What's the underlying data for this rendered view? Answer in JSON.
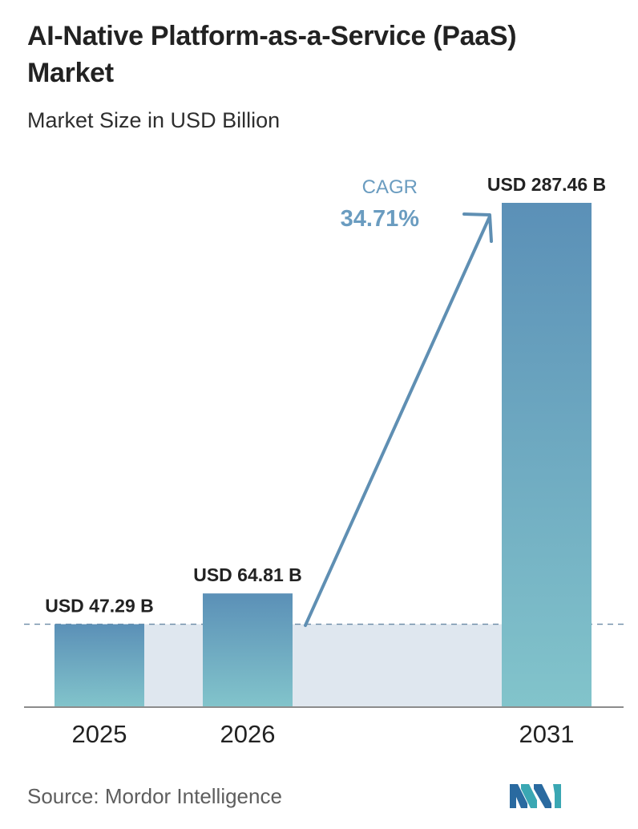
{
  "title": "AI-Native Platform-as-a-Service (PaaS) Market",
  "subtitle": "Market Size in USD Billion",
  "source": "Source: Mordor Intelligence",
  "colors": {
    "bar_top": "#5b90b7",
    "bar_bottom": "#82c4cb",
    "shade": "#dfe7ef",
    "arrow": "#5f8fb3",
    "cagr_text": "#6a9cc0",
    "axis": "#8c8c8c",
    "dash": "#6b8ba5"
  },
  "cagr": {
    "label": "CAGR",
    "value": "34.71%"
  },
  "chart_data": {
    "type": "bar",
    "categories": [
      "2025",
      "2026",
      "2031"
    ],
    "values": [
      47.29,
      64.81,
      287.46
    ],
    "value_labels": [
      "USD 47.29 B",
      "USD 64.81 B",
      "USD 287.46 B"
    ],
    "title": "AI-Native Platform-as-a-Service (PaaS) Market",
    "subtitle": "Market Size in USD Billion",
    "annotations": [
      {
        "text": "CAGR 34.71%",
        "from": "2026",
        "to": "2031"
      }
    ],
    "grid": false
  }
}
